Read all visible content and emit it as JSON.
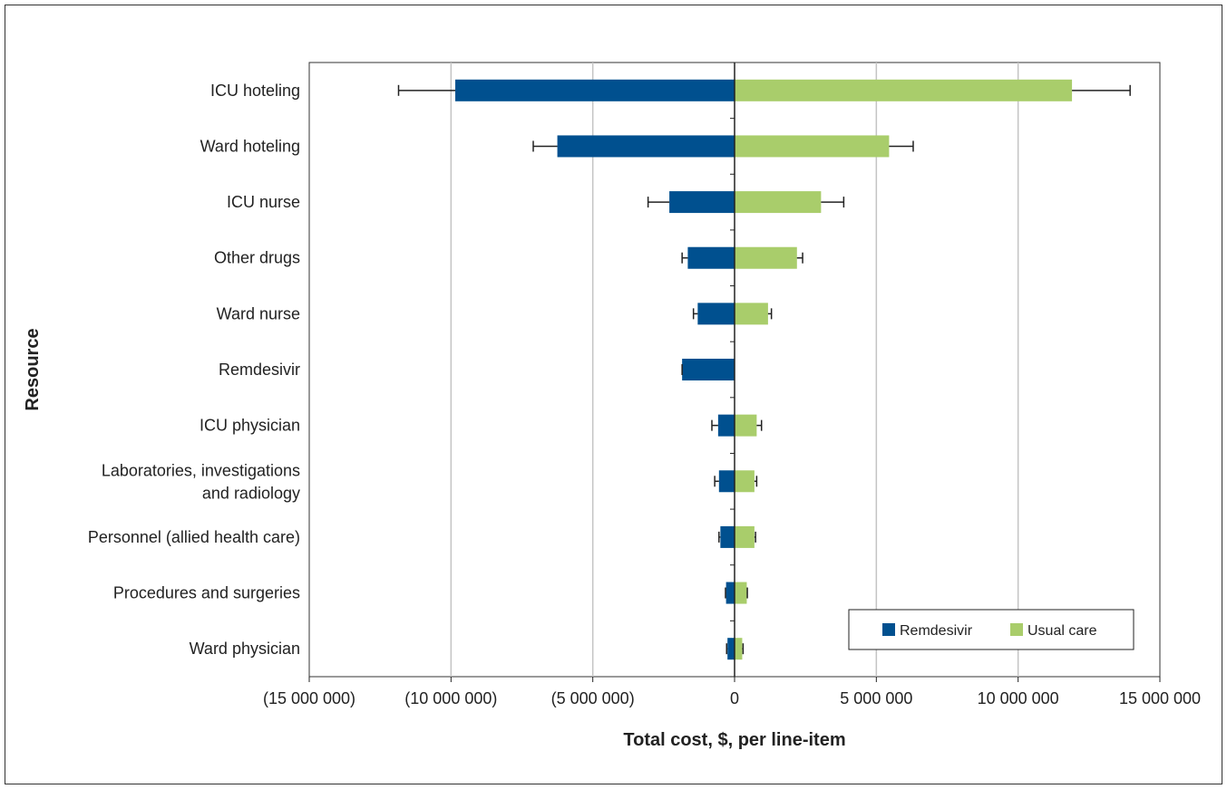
{
  "chart_data": {
    "type": "bar",
    "orientation": "horizontal",
    "xlabel": "Total cost, $, per line-item",
    "ylabel": "Resource",
    "xlim": [
      -15000000,
      15000000
    ],
    "x_ticks": [
      -15000000,
      -10000000,
      -5000000,
      0,
      5000000,
      10000000,
      15000000
    ],
    "x_tick_labels": [
      "(15 000 000)",
      "(10 000 000)",
      "(5 000 000)",
      "0",
      "5 000 000",
      "10 000 000",
      "15 000 000"
    ],
    "grid": "vertical",
    "legend_position": "bottom-right",
    "categories": [
      "ICU hoteling",
      "Ward hoteling",
      "ICU nurse",
      "Other drugs",
      "Ward nurse",
      "Remdesivir",
      "ICU physician",
      "Laboratories, investigations\nand radiology",
      "Personnel (allied health care)",
      "Procedures and surgeries",
      "Ward physician"
    ],
    "series": [
      {
        "name": "Remdesivir",
        "color": "#00508f",
        "values": [
          -9850000,
          -6250000,
          -2300000,
          -1650000,
          -1300000,
          -1850000,
          -580000,
          -550000,
          -500000,
          -300000,
          -250000
        ],
        "error_low": [
          -11850000,
          -7100000,
          -3050000,
          -1850000,
          -1450000,
          -1850000,
          -800000,
          -700000,
          -550000,
          -320000,
          -280000
        ]
      },
      {
        "name": "Usual care",
        "color": "#a9cd6b",
        "values": [
          11900000,
          5450000,
          3050000,
          2200000,
          1180000,
          0,
          780000,
          700000,
          700000,
          430000,
          270000
        ],
        "error_high": [
          13950000,
          6300000,
          3850000,
          2400000,
          1300000,
          0,
          950000,
          780000,
          740000,
          450000,
          300000
        ]
      }
    ]
  }
}
